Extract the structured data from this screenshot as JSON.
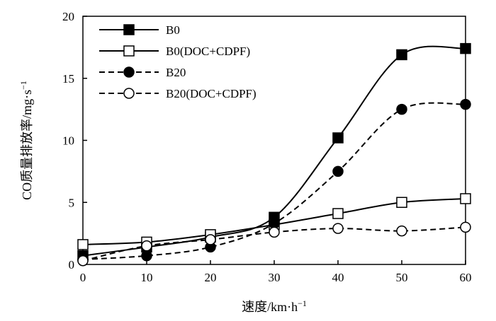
{
  "chart_data": {
    "type": "line",
    "xlabel": "速度/km·h",
    "xlabel_sup": "−1",
    "ylabel": "CO质量排放率/mg·s",
    "ylabel_sup": "−1",
    "xlim": [
      0,
      60
    ],
    "ylim": [
      0,
      20
    ],
    "xticks": [
      0,
      10,
      20,
      30,
      40,
      50,
      60
    ],
    "yticks": [
      0,
      5,
      10,
      15,
      20
    ],
    "x": [
      0,
      10,
      20,
      30,
      40,
      50,
      60
    ],
    "legend_position": "top-left",
    "grid": false,
    "series": [
      {
        "name": "B0",
        "marker": "filled-square",
        "line": "solid",
        "values": [
          0.7,
          1.4,
          2.2,
          3.8,
          10.2,
          16.9,
          17.4
        ]
      },
      {
        "name": "B0(DOC+CDPF)",
        "marker": "open-square",
        "line": "solid",
        "values": [
          1.6,
          1.8,
          2.4,
          3.2,
          4.1,
          5.0,
          5.3
        ]
      },
      {
        "name": "B20",
        "marker": "filled-circle",
        "line": "dashed",
        "values": [
          0.4,
          0.7,
          1.4,
          3.3,
          7.5,
          12.5,
          12.9
        ]
      },
      {
        "name": "B20(DOC+CDPF)",
        "marker": "open-circle",
        "line": "dashed",
        "values": [
          0.3,
          1.5,
          2.0,
          2.6,
          2.9,
          2.7,
          3.0
        ]
      }
    ]
  }
}
